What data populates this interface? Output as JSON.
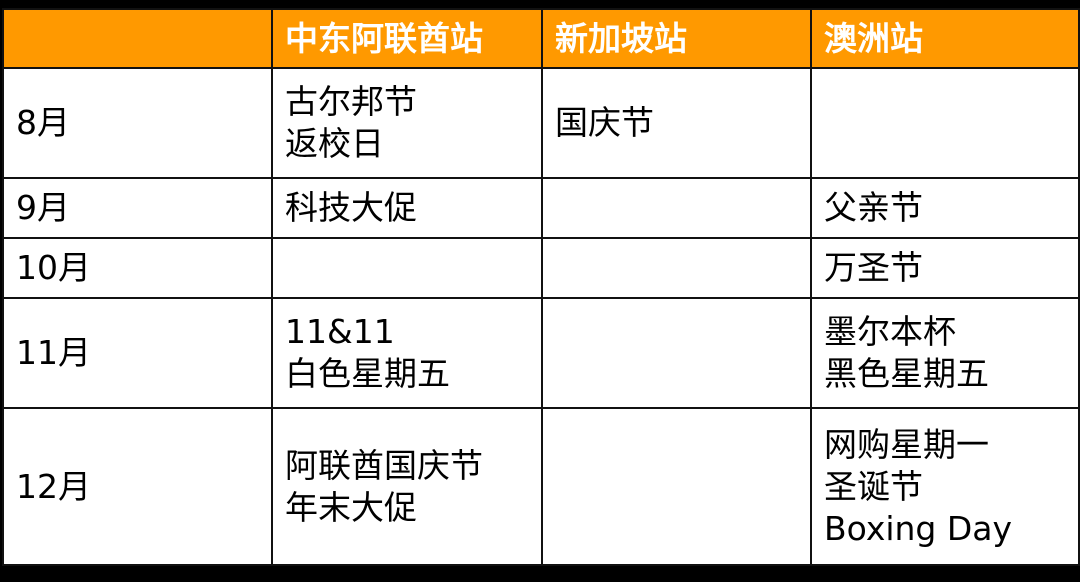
{
  "header_color": "#FF9900",
  "columns": [
    "",
    "中东阿联酋站",
    "新加坡站",
    "澳洲站"
  ],
  "rows": [
    {
      "month": "8月",
      "uae": [
        "古尔邦节",
        "返校日"
      ],
      "sg": [
        "国庆节"
      ],
      "au": []
    },
    {
      "month": "9月",
      "uae": [
        "科技大促"
      ],
      "sg": [],
      "au": [
        "父亲节"
      ]
    },
    {
      "month": "10月",
      "uae": [],
      "sg": [],
      "au": [
        "万圣节"
      ]
    },
    {
      "month": "11月",
      "uae": [
        "11&11",
        "白色星期五"
      ],
      "sg": [],
      "au": [
        "墨尔本杯",
        "黑色星期五"
      ]
    },
    {
      "month": "12月",
      "uae": [
        "阿联酋国庆节",
        "年末大促"
      ],
      "sg": [],
      "au": [
        "网购星期一",
        "圣诞节",
        "Boxing Day"
      ]
    }
  ]
}
